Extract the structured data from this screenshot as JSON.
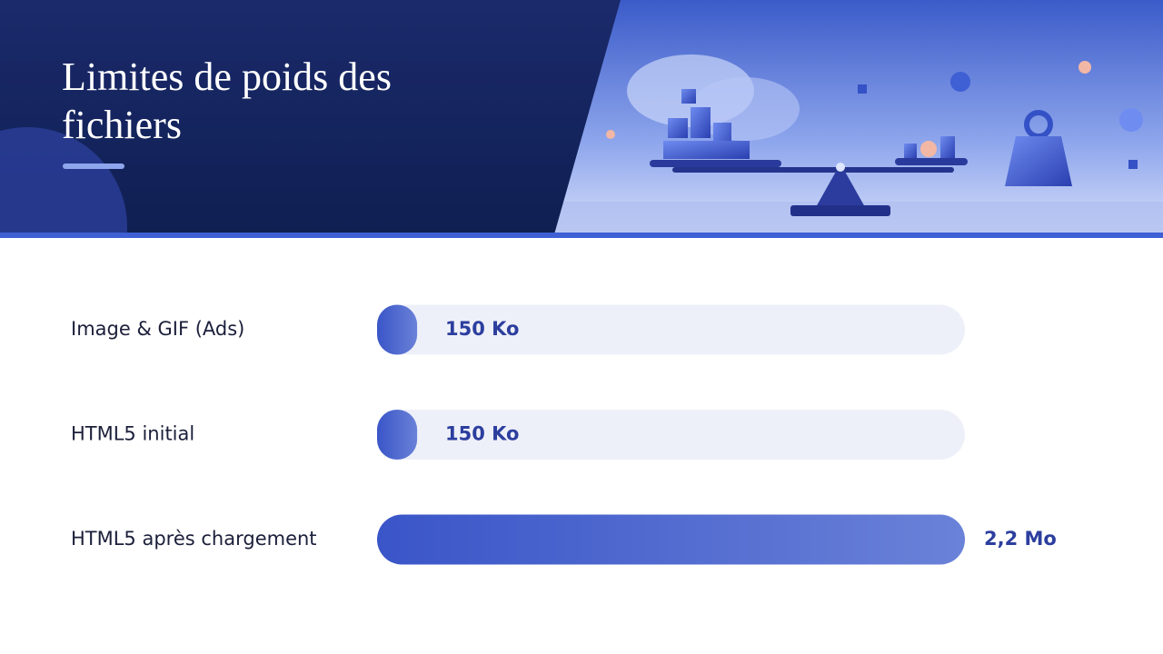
{
  "chart_data": {
    "type": "bar",
    "orientation": "horizontal",
    "title": "Limites de poids des fichiers",
    "categories": [
      "Image & GIF (Ads)",
      "HTML5 initial",
      "HTML5 après chargement"
    ],
    "values": [
      150,
      150,
      2200
    ],
    "value_labels": [
      "150 Ko",
      "150 Ko",
      "2,2 Mo"
    ],
    "xlim": [
      0,
      2200
    ],
    "color": "#4059c9"
  }
}
